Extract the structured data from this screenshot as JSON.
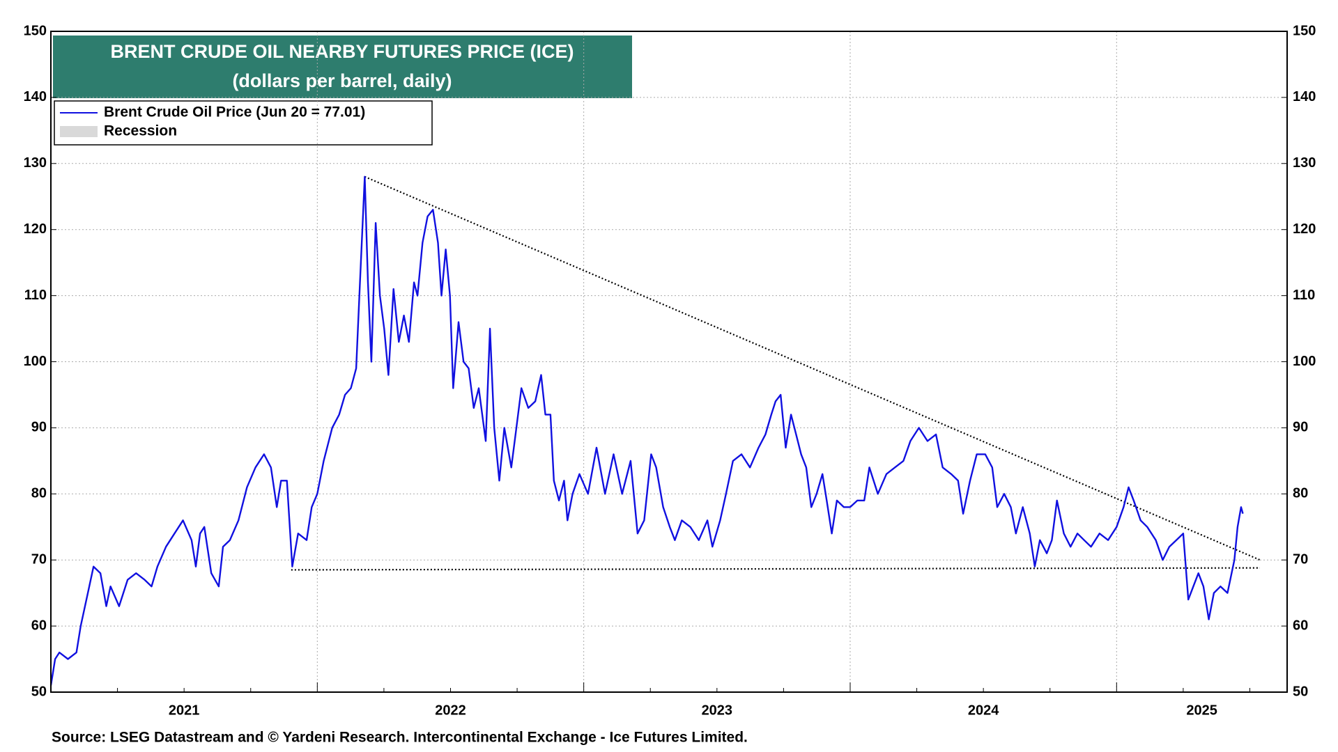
{
  "chart_data": {
    "type": "line",
    "title": "BRENT CRUDE OIL NEARBY FUTURES  PRICE (ICE)",
    "subtitle": "(dollars per barrel, daily)",
    "source": "Source: LSEG Datastream and © Yardeni Research. Intercontinental Exchange - Ice Futures Limited.",
    "x": [
      2021.0,
      2021.016,
      2021.032,
      2021.064,
      2021.096,
      2021.112,
      2021.144,
      2021.16,
      2021.186,
      2021.208,
      2021.224,
      2021.256,
      2021.288,
      2021.32,
      2021.352,
      2021.378,
      2021.4,
      2021.432,
      2021.464,
      2021.496,
      2021.528,
      2021.544,
      2021.56,
      2021.576,
      2021.602,
      2021.63,
      2021.646,
      2021.672,
      2021.704,
      2021.736,
      2021.768,
      2021.8,
      2021.826,
      2021.848,
      2021.864,
      2021.886,
      2021.906,
      2021.928,
      2021.96,
      2021.979,
      2022.0,
      2022.024,
      2022.056,
      2022.082,
      2022.104,
      2022.126,
      2022.146,
      2022.158,
      2022.178,
      2022.19,
      2022.203,
      2022.219,
      2022.235,
      2022.251,
      2022.267,
      2022.286,
      2022.306,
      2022.325,
      2022.344,
      2022.363,
      2022.376,
      2022.395,
      2022.414,
      2022.434,
      2022.453,
      2022.466,
      2022.482,
      2022.498,
      2022.51,
      2022.53,
      2022.549,
      2022.568,
      2022.587,
      2022.606,
      2022.632,
      2022.648,
      2022.664,
      2022.683,
      2022.702,
      2022.728,
      2022.744,
      2022.766,
      2022.792,
      2022.818,
      2022.84,
      2022.856,
      2022.875,
      2022.888,
      2022.907,
      2022.926,
      2022.939,
      2022.958,
      2022.984,
      2023.016,
      2023.048,
      2023.08,
      2023.112,
      2023.144,
      2023.176,
      2023.202,
      2023.227,
      2023.253,
      2023.272,
      2023.298,
      2023.323,
      2023.342,
      2023.368,
      2023.4,
      2023.432,
      2023.464,
      2023.483,
      2023.512,
      2023.534,
      2023.56,
      2023.592,
      2023.624,
      2023.656,
      2023.682,
      2023.704,
      2023.72,
      2023.739,
      2023.758,
      2023.778,
      2023.797,
      2023.816,
      2023.835,
      2023.854,
      2023.874,
      2023.896,
      2023.912,
      2023.931,
      2023.95,
      2023.976,
      2024.0,
      2024.027,
      2024.053,
      2024.072,
      2024.104,
      2024.136,
      2024.168,
      2024.2,
      2024.226,
      2024.258,
      2024.29,
      2024.322,
      2024.347,
      2024.379,
      2024.405,
      2024.424,
      2024.45,
      2024.475,
      2024.507,
      2024.533,
      2024.552,
      2024.578,
      2024.603,
      2024.622,
      2024.648,
      2024.674,
      2024.693,
      2024.712,
      2024.738,
      2024.757,
      2024.776,
      2024.802,
      2024.827,
      2024.853,
      2024.878,
      2024.904,
      2024.936,
      2024.968,
      2025.0,
      2025.026,
      2025.045,
      2025.064,
      2025.09,
      2025.115,
      2025.147,
      2025.173,
      2025.198,
      2025.224,
      2025.25,
      2025.269,
      2025.288,
      2025.307,
      2025.326,
      2025.346,
      2025.365,
      2025.39,
      2025.416,
      2025.442,
      2025.454,
      2025.467,
      2025.474
    ],
    "series": [
      {
        "name": "Brent Crude Oil Price (Jun 20 = 77.01)",
        "color": "#1010e0",
        "values": [
          51,
          55,
          56,
          55,
          56,
          60,
          66,
          69,
          68,
          63,
          66,
          63,
          67,
          68,
          67,
          66,
          69,
          72,
          74,
          76,
          73,
          69,
          74,
          75,
          68,
          66,
          72,
          73,
          76,
          81,
          84,
          86,
          84,
          78,
          82,
          82,
          69,
          74,
          73,
          78,
          80,
          85,
          90,
          92,
          95,
          96,
          99,
          110,
          128,
          112,
          100,
          121,
          110,
          105,
          98,
          111,
          103,
          107,
          103,
          112,
          110,
          118,
          122,
          123,
          118,
          110,
          117,
          110,
          96,
          106,
          100,
          99,
          93,
          96,
          88,
          105,
          90,
          82,
          90,
          84,
          89,
          96,
          93,
          94,
          98,
          92,
          92,
          82,
          79,
          82,
          76,
          80,
          83,
          80,
          87,
          80,
          86,
          80,
          85,
          74,
          76,
          86,
          84,
          78,
          75,
          73,
          76,
          75,
          73,
          76,
          72,
          76,
          80,
          85,
          86,
          84,
          87,
          89,
          92,
          94,
          95,
          87,
          92,
          89,
          86,
          84,
          78,
          80,
          83,
          79,
          74,
          79,
          78,
          78,
          79,
          79,
          84,
          80,
          83,
          84,
          85,
          88,
          90,
          88,
          89,
          84,
          83,
          82,
          77,
          82,
          86,
          86,
          84,
          78,
          80,
          78,
          74,
          78,
          74,
          69,
          73,
          71,
          73,
          79,
          74,
          72,
          74,
          73,
          72,
          74,
          73,
          75,
          78,
          81,
          79,
          76,
          75,
          73,
          70,
          72,
          73,
          74,
          64,
          66,
          68,
          66,
          61,
          65,
          66,
          65,
          70,
          75,
          78,
          77.01
        ]
      }
    ],
    "recession": {
      "name": "Recession",
      "color": "#d9d9d9"
    },
    "trendlines": [
      {
        "x": [
          2022.178,
          2025.538
        ],
        "y": [
          128,
          70
        ]
      },
      {
        "x": [
          2021.902,
          2025.538
        ],
        "y": [
          68.5,
          68.8
        ]
      }
    ],
    "xlim": [
      2021,
      2025.64
    ],
    "xticks": [
      2021,
      2022,
      2023,
      2024,
      2025
    ],
    "ylim": [
      50,
      150
    ],
    "yticks": [
      50,
      60,
      70,
      80,
      90,
      100,
      110,
      120,
      130,
      140,
      150
    ],
    "y2lim": [
      50,
      150
    ],
    "y2ticks": [
      50,
      60,
      70,
      80,
      90,
      100,
      110,
      120,
      130,
      140,
      150
    ],
    "grid": true
  }
}
